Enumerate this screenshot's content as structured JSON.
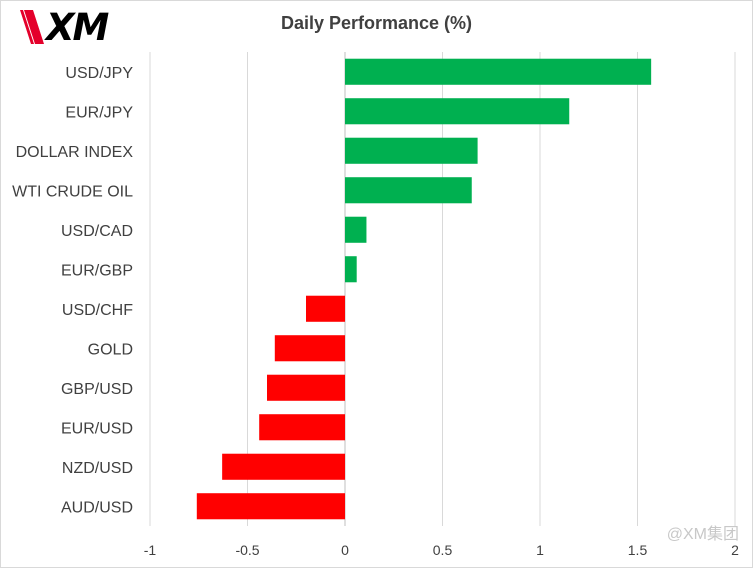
{
  "logo": {
    "text": "XM"
  },
  "watermark": {
    "text": "@XM集团"
  },
  "colors": {
    "positive": "#00b050",
    "negative": "#ff0000",
    "grid": "#d9d9d9",
    "text": "#404040"
  },
  "chart_data": {
    "type": "bar",
    "orientation": "horizontal",
    "title": "Daily Performance  (%)",
    "categories": [
      "USD/JPY",
      "EUR/JPY",
      "DOLLAR INDEX",
      "WTI CRUDE OIL",
      "USD/CAD",
      "EUR/GBP",
      "USD/CHF",
      "GOLD",
      "GBP/USD",
      "EUR/USD",
      "NZD/USD",
      "AUD/USD"
    ],
    "values": [
      1.57,
      1.15,
      0.68,
      0.65,
      0.11,
      0.06,
      -0.2,
      -0.36,
      -0.4,
      -0.44,
      -0.63,
      -0.76
    ],
    "xlim": [
      -1,
      2
    ],
    "xticks": [
      -1,
      -0.5,
      0,
      0.5,
      1,
      1.5,
      2
    ],
    "xtick_labels": [
      "-1",
      "-0.5",
      "0",
      "0.5",
      "1",
      "1.5",
      "2"
    ],
    "grid": "vertical",
    "legend": "none"
  }
}
